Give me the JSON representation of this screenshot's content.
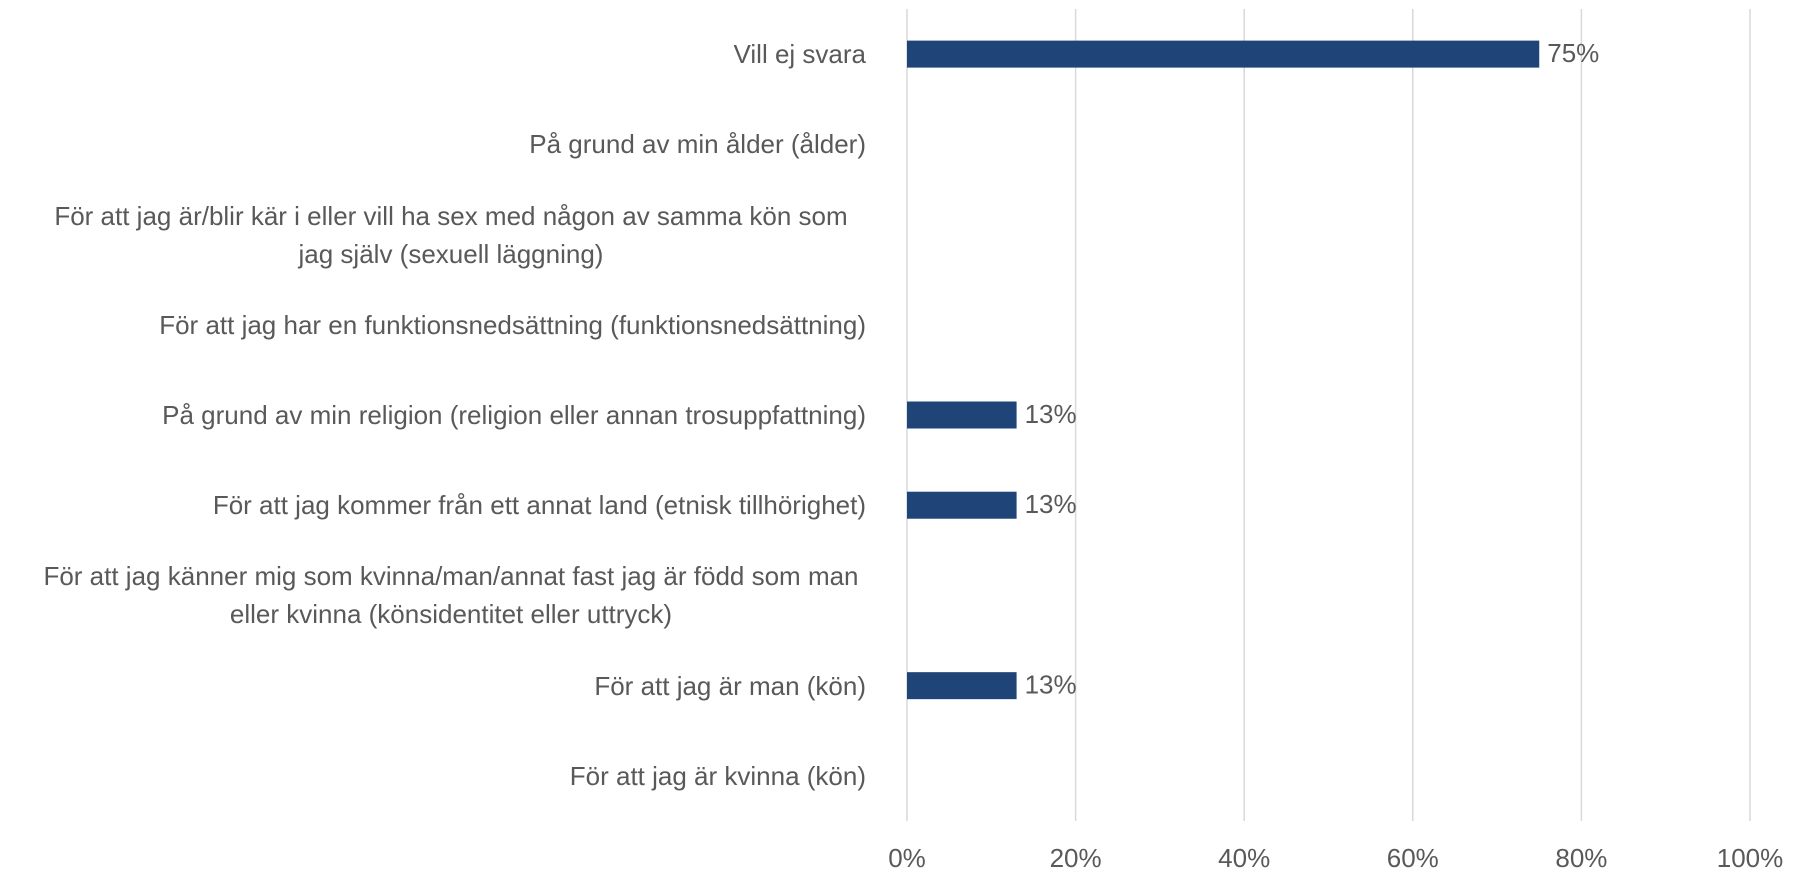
{
  "chart_data": {
    "type": "bar",
    "orientation": "horizontal",
    "categories": [
      "Vill ej svara",
      "På grund av min ålder (ålder)",
      "För att jag är/blir kär i eller vill ha sex med någon av samma kön som jag själv (sexuell läggning)",
      "För att jag har en funktionsnedsättning (funktionsnedsättning)",
      "På grund av min religion (religion eller annan trosuppfattning)",
      "För att jag kommer från ett annat land (etnisk tillhörighet)",
      "För att jag känner mig som kvinna/man/annat fast jag är född som man eller kvinna (könsidentitet eller uttryck)",
      "För att jag är man (kön)",
      "För att jag är kvinna (kön)"
    ],
    "values": [
      75,
      0,
      0,
      0,
      13,
      13,
      0,
      13,
      0
    ],
    "value_labels": [
      "75%",
      null,
      null,
      null,
      "13%",
      "13%",
      null,
      "13%",
      null
    ],
    "color": "#1f4477",
    "xlim": [
      0,
      100
    ],
    "xticks": [
      {
        "value": 0,
        "label": "0%"
      },
      {
        "value": 20,
        "label": "20%"
      },
      {
        "value": 40,
        "label": "40%"
      },
      {
        "value": 60,
        "label": "60%"
      },
      {
        "value": 80,
        "label": "80%"
      },
      {
        "value": 100,
        "label": "100%"
      }
    ],
    "grid": true
  }
}
